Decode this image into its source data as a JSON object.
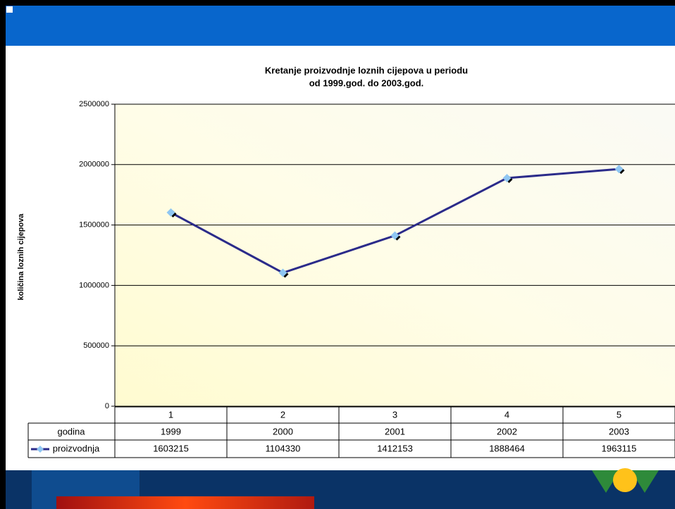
{
  "chart_data": {
    "type": "line",
    "title_lines": [
      "Kretanje proizvodnje loznih cijepova u periodu",
      "od 1999.god. do 2003.god."
    ],
    "y_label": "količina loznih cijepova",
    "categories": [
      1,
      2,
      3,
      4,
      5
    ],
    "series": [
      {
        "name": "proizvodnja",
        "color": "#2b2b8a",
        "marker_color": "#8fc6f2",
        "values": [
          1603215,
          1104330,
          1412153,
          1888464,
          1963115
        ]
      }
    ],
    "data_table": {
      "row_label": "godina",
      "years": [
        1999,
        2000,
        2001,
        2002,
        2003
      ]
    },
    "ylim": [
      0,
      2500000
    ],
    "yticks": [
      0,
      500000,
      1000000,
      1500000,
      2000000,
      2500000
    ],
    "grid": true
  }
}
